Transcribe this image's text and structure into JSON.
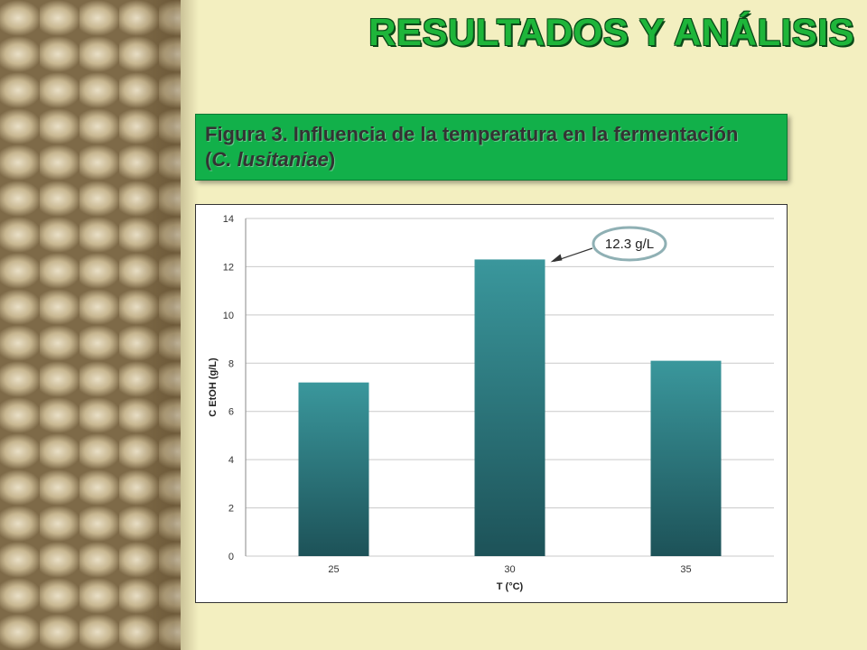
{
  "slide": {
    "title": "RESULTADOS Y ANÁLISIS",
    "caption_line1": "Figura 3. Influencia de la temperatura en la fermentación",
    "caption_prefix": "(",
    "caption_species": "C. lusitaniae",
    "caption_suffix": ")"
  },
  "colors": {
    "title": "#1eb53a",
    "caption_bg": "#12b04a",
    "bar_top": "#3a979c",
    "bar_bottom": "#1d5258",
    "callout_border": "#8fb0b4"
  },
  "chart_data": {
    "type": "bar",
    "categories": [
      "25",
      "30",
      "35"
    ],
    "values": [
      7.2,
      12.3,
      8.1
    ],
    "title": "",
    "xlabel": "T (°C)",
    "ylabel": "C EtOH (g/L)",
    "ylim": [
      0,
      14
    ],
    "yticks": [
      "0",
      "2",
      "4",
      "6",
      "8",
      "10",
      "12",
      "14"
    ],
    "grid": true,
    "legend": "none",
    "annotation": {
      "text": "12.3 g/L",
      "target_category": "30"
    }
  }
}
